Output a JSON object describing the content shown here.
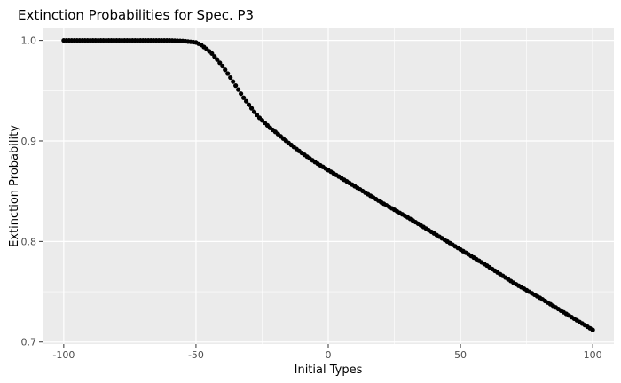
{
  "chart_data": {
    "type": "scatter",
    "title": "Extinction Probabilities for Spec. P3",
    "xlabel": "Initial Types",
    "ylabel": "Extinction Probability",
    "xlim": [
      -108,
      108
    ],
    "ylim": [
      0.698,
      1.012
    ],
    "x_ticks": [
      -100,
      -50,
      0,
      50,
      100
    ],
    "x_tick_labels": [
      "-100",
      "-50",
      "0",
      "50",
      "100"
    ],
    "y_ticks": [
      0.7,
      0.8,
      0.9,
      1.0
    ],
    "y_tick_labels": [
      "0.7",
      "0.8",
      "0.9",
      "1.0"
    ],
    "grid": true,
    "legend": "none",
    "colors": {
      "panel_background": "#ebebeb",
      "grid": "#ffffff",
      "points": "#000000"
    },
    "x": [
      -100,
      -90,
      -80,
      -70,
      -60,
      -55,
      -50,
      -48,
      -46,
      -44,
      -42,
      -40,
      -38,
      -36,
      -34,
      -32,
      -30,
      -28,
      -26,
      -24,
      -22,
      -20,
      -15,
      -10,
      -5,
      0,
      10,
      20,
      30,
      40,
      50,
      60,
      70,
      80,
      90,
      100
    ],
    "y": [
      1.0,
      1.0,
      1.0,
      1.0,
      1.0,
      0.9995,
      0.998,
      0.9955,
      0.9915,
      0.987,
      0.981,
      0.9745,
      0.967,
      0.959,
      0.951,
      0.943,
      0.936,
      0.929,
      0.923,
      0.918,
      0.913,
      0.909,
      0.898,
      0.888,
      0.879,
      0.871,
      0.855,
      0.839,
      0.824,
      0.808,
      0.792,
      0.776,
      0.759,
      0.744,
      0.728,
      0.712
    ]
  }
}
